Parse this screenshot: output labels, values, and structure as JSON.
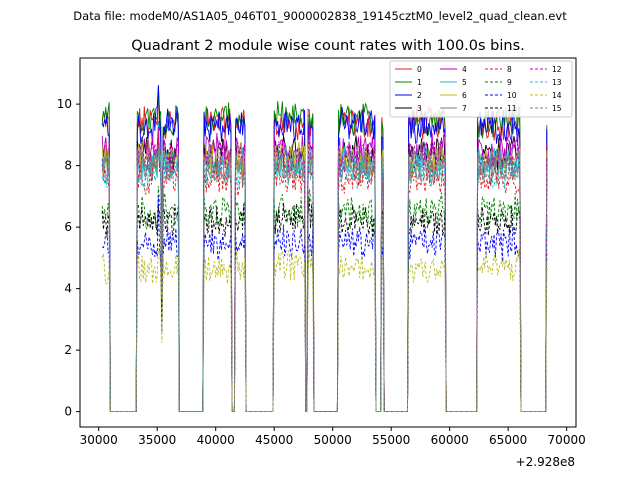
{
  "suptitle": "Data file: modeM0/AS1A05_046T01_9000002838_19145cztM0_level2_quad_clean.evt",
  "chart_data": {
    "type": "line",
    "title": "Quadrant 2 module wise count rates with 100.0s bins.",
    "xlabel": "",
    "ylabel": "",
    "x_offset_label": "+2.928e8",
    "xlim": [
      28400,
      70800
    ],
    "ylim": [
      -0.5,
      11.5
    ],
    "x_ticks": [
      30000,
      35000,
      40000,
      45000,
      50000,
      55000,
      60000,
      65000,
      70000
    ],
    "x_tick_labels": [
      "30000",
      "35000",
      "40000",
      "45000",
      "50000",
      "55000",
      "60000",
      "65000",
      "70000"
    ],
    "y_ticks": [
      0,
      2,
      4,
      6,
      8,
      10
    ],
    "y_tick_labels": [
      "0",
      "2",
      "4",
      "6",
      "8",
      "10"
    ],
    "grid": false,
    "legend_position": "top-right",
    "segments": [
      [
        30300,
        30900
      ],
      [
        33300,
        36800
      ],
      [
        39000,
        41300
      ],
      [
        41700,
        42500
      ],
      [
        45000,
        47600
      ],
      [
        47900,
        48300
      ],
      [
        50500,
        53600
      ],
      [
        54200,
        54300
      ],
      [
        56500,
        59600
      ],
      [
        62400,
        66000
      ],
      [
        68300,
        68300
      ]
    ],
    "zero_spans": [
      [
        31000,
        33200
      ],
      [
        37100,
        38800
      ],
      [
        42800,
        44800
      ],
      [
        48400,
        50400
      ],
      [
        53800,
        54000
      ],
      [
        54500,
        56300
      ],
      [
        59800,
        62200
      ],
      [
        66200,
        68100
      ]
    ],
    "spikes": [
      {
        "x": 35100,
        "amp": 1.0
      },
      {
        "x": 35400,
        "amp": -0.7
      },
      {
        "x": 41400,
        "amp": -1.0
      },
      {
        "x": 47700,
        "amp": -1.0
      },
      {
        "x": 48000,
        "amp": 0.4
      }
    ],
    "series": [
      {
        "name": "0",
        "level": 9.4,
        "color": "#e41a1c",
        "style": "solid"
      },
      {
        "name": "1",
        "level": 9.5,
        "color": "#008000",
        "style": "solid"
      },
      {
        "name": "2",
        "level": 9.3,
        "color": "#0000ff",
        "style": "solid"
      },
      {
        "name": "3",
        "level": 8.4,
        "color": "#000000",
        "style": "solid"
      },
      {
        "name": "4",
        "level": 8.5,
        "color": "#bf00bf",
        "style": "solid"
      },
      {
        "name": "5",
        "level": 8.1,
        "color": "#17becf",
        "style": "solid"
      },
      {
        "name": "6",
        "level": 8.2,
        "color": "#bcbd22",
        "style": "solid"
      },
      {
        "name": "7",
        "level": 7.9,
        "color": "#7f7f7f",
        "style": "solid"
      },
      {
        "name": "8",
        "level": 7.6,
        "color": "#e41a1c",
        "style": "dashed"
      },
      {
        "name": "9",
        "level": 6.5,
        "color": "#008000",
        "style": "dashed"
      },
      {
        "name": "10",
        "level": 5.5,
        "color": "#0000ff",
        "style": "dashed"
      },
      {
        "name": "11",
        "level": 6.2,
        "color": "#000000",
        "style": "dashed"
      },
      {
        "name": "12",
        "level": 8.3,
        "color": "#bf00bf",
        "style": "dashed"
      },
      {
        "name": "13",
        "level": 7.8,
        "color": "#17becf",
        "style": "dashed"
      },
      {
        "name": "14",
        "level": 4.7,
        "color": "#bcbd22",
        "style": "dashed"
      },
      {
        "name": "15",
        "level": 8.0,
        "color": "#7f7f7f",
        "style": "dashed"
      }
    ]
  }
}
